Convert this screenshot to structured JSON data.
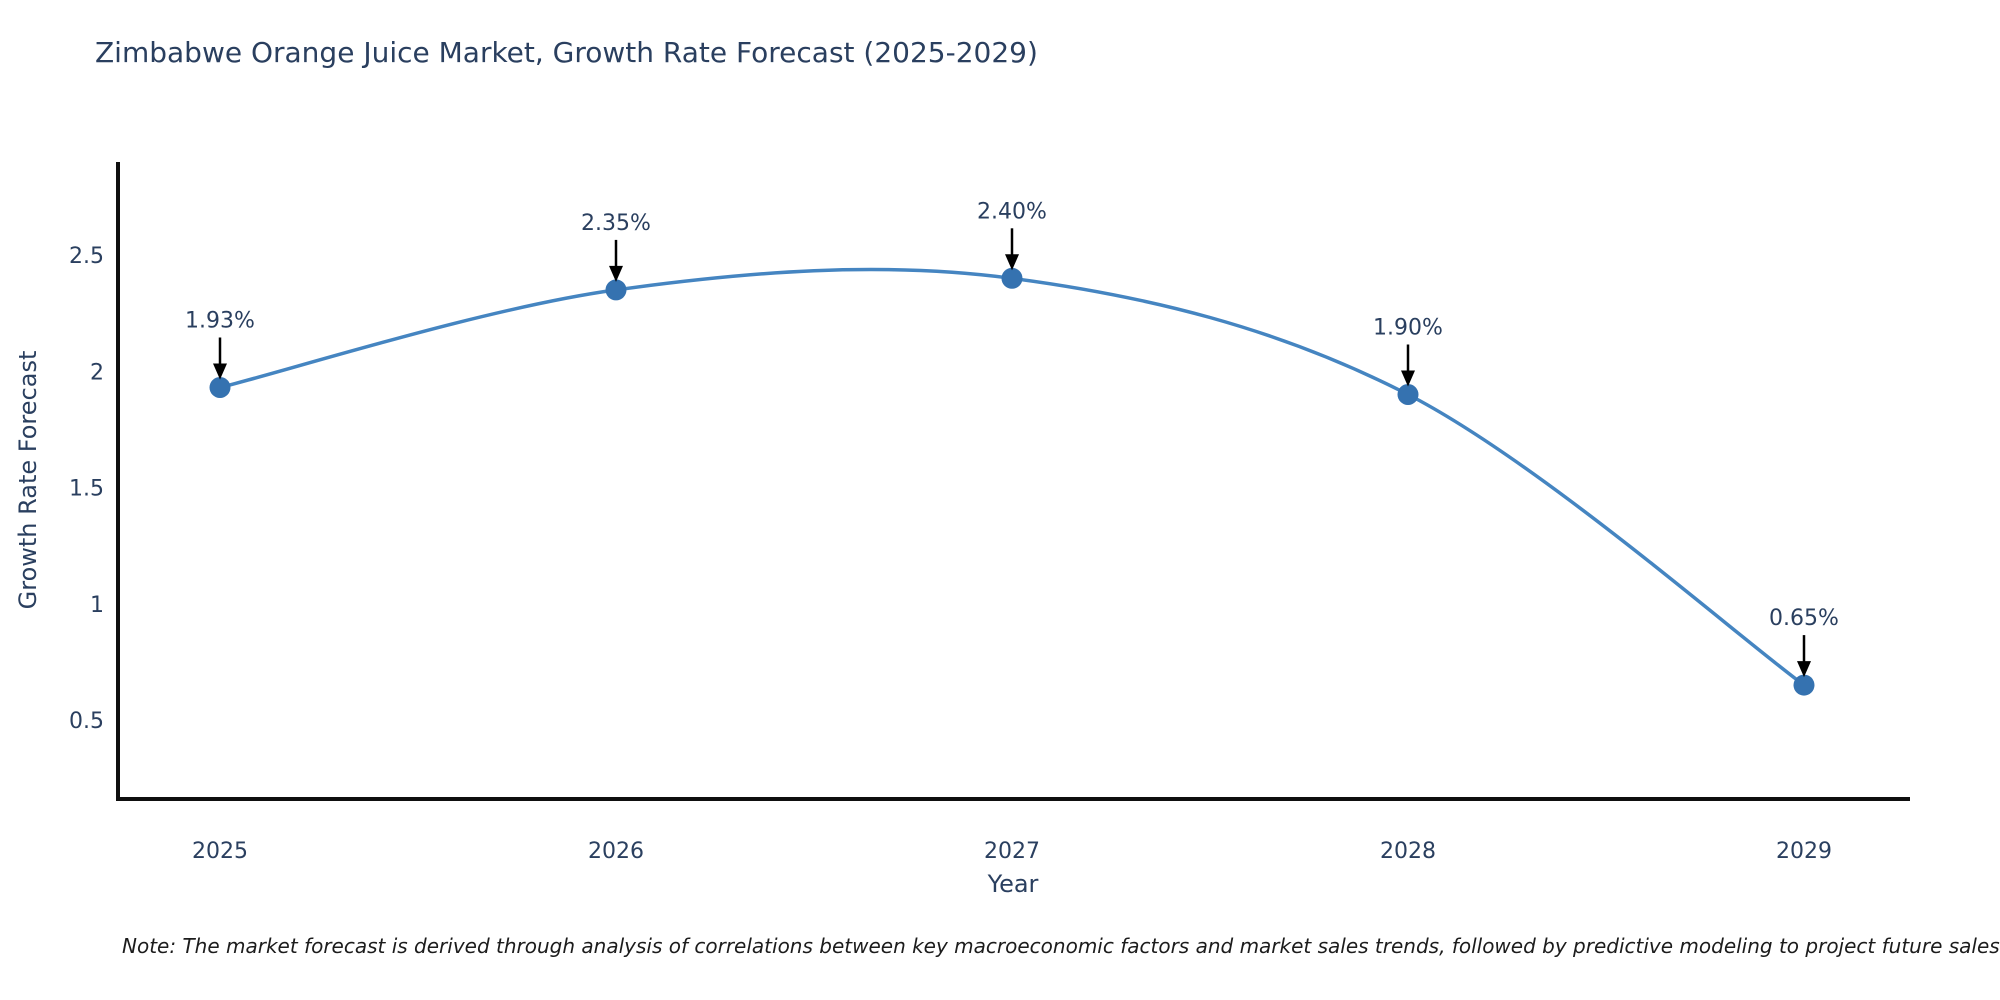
{
  "title": "Zimbabwe Orange Juice Market, Growth Rate Forecast (2025-2029)",
  "note": "Note: The market forecast is derived through analysis of correlations between key macroeconomic factors and market sales trends, followed by predictive modeling to project future sales",
  "chart_data": {
    "type": "line",
    "line_shape": "spline",
    "title": "Zimbabwe Orange Juice Market, Growth Rate Forecast (2025-2029)",
    "xlabel": "Year",
    "ylabel": "Growth Rate Forecast",
    "x": [
      2025,
      2026,
      2027,
      2028,
      2029
    ],
    "values": [
      1.93,
      2.35,
      2.4,
      1.9,
      0.65
    ],
    "point_labels": [
      "1.93%",
      "2.35%",
      "2.40%",
      "1.90%",
      "0.65%"
    ],
    "xtick_labels": [
      "2025",
      "2026",
      "2027",
      "2028",
      "2029"
    ],
    "ytick_values": [
      2.5,
      2.0,
      1.5,
      1.0,
      0.5
    ],
    "ytick_labels": [
      "2.5",
      "2",
      "1.5",
      "1",
      "0.5"
    ],
    "ylim": [
      0.15,
      2.9
    ],
    "grid": false,
    "legend": "none",
    "colors": {
      "line": "#4585c1",
      "marker": "#3572b0",
      "arrow": "#000000",
      "axis": "#0f0f0f",
      "text": "#2a3f5f"
    }
  }
}
